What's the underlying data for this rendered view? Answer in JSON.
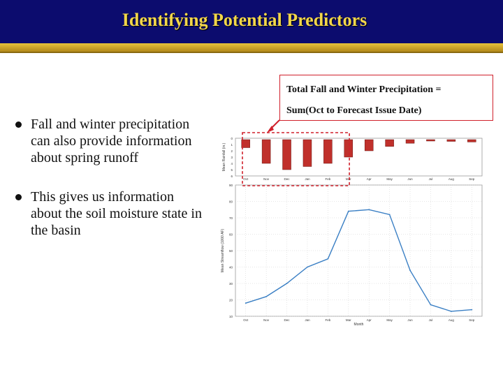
{
  "slide": {
    "title": "Identifying Potential Predictors",
    "callout_line1": "Total Fall and Winter Precipitation =",
    "callout_line2": "Sum(Oct to Forecast Issue Date)"
  },
  "bullets": [
    "Fall and winter precipitation can also provide information about spring runoff",
    "This gives us information about the soil moisture state in the basin"
  ],
  "colors": {
    "header": "#0c0c6e",
    "title": "#f2d64a",
    "bar": "#c0302b",
    "line": "#3a7fc4",
    "highlight": "#d0202b"
  },
  "chart_data": [
    {
      "type": "bar",
      "categories": [
        "Oct",
        "Nov",
        "Dec",
        "Jan",
        "Feb",
        "Mar",
        "Apr",
        "May",
        "Jun",
        "Jul",
        "Aug",
        "Sep"
      ],
      "values": [
        1.5,
        4.0,
        5.0,
        4.5,
        4.0,
        3.0,
        2.0,
        1.3,
        0.8,
        0.4,
        0.5,
        0.6
      ],
      "ylim": [
        0,
        6
      ],
      "yticks": [
        "0",
        "1",
        "2",
        "3",
        "4",
        "5",
        "6"
      ],
      "ylabel": "Mean Rainfall (in.)",
      "bars_hang_from_top": true
    },
    {
      "type": "line",
      "categories": [
        "Oct",
        "Nov",
        "Dec",
        "Jan",
        "Feb",
        "Mar",
        "Apr",
        "May",
        "Jun",
        "Jul",
        "Aug",
        "Sep"
      ],
      "values": [
        18,
        22,
        30,
        40,
        45,
        74,
        75,
        72,
        38,
        17,
        13,
        14
      ],
      "ylim": [
        10,
        90
      ],
      "yticks": [
        "10",
        "20",
        "30",
        "40",
        "50",
        "60",
        "70",
        "80",
        "90"
      ],
      "ylabel": "Mean Streamflow (1000 AF)",
      "xlabel": "Month",
      "grid": true
    }
  ]
}
